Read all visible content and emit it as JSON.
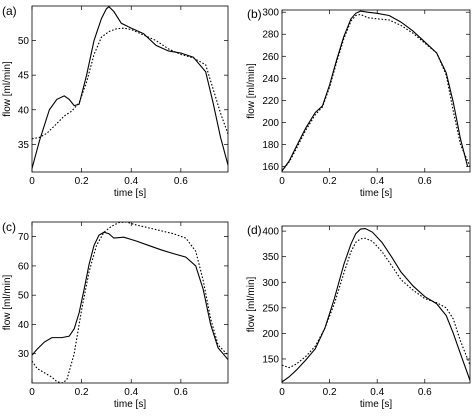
{
  "chart_data": [
    {
      "type": "line",
      "panel_label": "(a)",
      "xlabel": "time [s]",
      "ylabel": "flow [ml/min]",
      "xlim": [
        0,
        0.79
      ],
      "ylim": [
        31,
        55
      ],
      "xticks": [
        0,
        0.2,
        0.4,
        0.6
      ],
      "yticks": [
        35,
        40,
        45,
        50
      ],
      "grid": false,
      "series": [
        {
          "style": "solid",
          "x": [
            0,
            0.03,
            0.07,
            0.1,
            0.13,
            0.15,
            0.17,
            0.19,
            0.22,
            0.25,
            0.28,
            0.3,
            0.31,
            0.33,
            0.36,
            0.4,
            0.45,
            0.5,
            0.55,
            0.6,
            0.65,
            0.7,
            0.73,
            0.76,
            0.79
          ],
          "y": [
            31.5,
            35.5,
            40.0,
            41.5,
            42.0,
            41.5,
            40.6,
            40.8,
            45.0,
            50.0,
            53.2,
            54.6,
            54.9,
            54.2,
            52.5,
            51.8,
            51.0,
            49.3,
            48.5,
            48.2,
            47.6,
            45.5,
            41.0,
            36.0,
            32.0
          ]
        },
        {
          "style": "dotted",
          "x": [
            0,
            0.03,
            0.06,
            0.1,
            0.13,
            0.16,
            0.19,
            0.22,
            0.25,
            0.28,
            0.31,
            0.34,
            0.37,
            0.4,
            0.45,
            0.5,
            0.55,
            0.6,
            0.65,
            0.7,
            0.73,
            0.76,
            0.79
          ],
          "y": [
            35.8,
            36.0,
            36.6,
            38.0,
            39.1,
            39.8,
            41.0,
            44.0,
            48.0,
            50.5,
            51.3,
            51.7,
            51.8,
            51.6,
            50.8,
            50.0,
            48.8,
            48.0,
            47.5,
            46.5,
            43.0,
            39.5,
            36.5
          ]
        }
      ]
    },
    {
      "type": "line",
      "panel_label": "(b)",
      "xlabel": "time [s]",
      "ylabel": "flow [ml/min]",
      "xlim": [
        0,
        0.79
      ],
      "ylim": [
        155,
        302
      ],
      "xticks": [
        0,
        0.2,
        0.4,
        0.6
      ],
      "yticks": [
        160,
        180,
        200,
        220,
        240,
        260,
        280,
        300
      ],
      "grid": false,
      "series": [
        {
          "style": "solid",
          "x": [
            0,
            0.03,
            0.06,
            0.1,
            0.14,
            0.17,
            0.2,
            0.23,
            0.26,
            0.29,
            0.31,
            0.33,
            0.36,
            0.4,
            0.45,
            0.5,
            0.55,
            0.6,
            0.65,
            0.69,
            0.72,
            0.75,
            0.78
          ],
          "y": [
            156,
            165,
            178,
            195,
            209,
            215,
            234,
            257,
            278,
            294,
            299,
            301,
            300,
            299,
            297,
            291,
            283,
            273,
            263,
            245,
            218,
            185,
            160
          ]
        },
        {
          "style": "dotted",
          "x": [
            0,
            0.03,
            0.06,
            0.1,
            0.14,
            0.17,
            0.2,
            0.23,
            0.26,
            0.29,
            0.31,
            0.33,
            0.36,
            0.4,
            0.45,
            0.5,
            0.55,
            0.6,
            0.65,
            0.69,
            0.72,
            0.75,
            0.79
          ],
          "y": [
            156,
            164,
            176,
            193,
            207,
            214,
            232,
            255,
            276,
            292,
            297,
            298,
            295,
            294,
            293,
            288,
            281,
            272,
            263,
            243,
            210,
            180,
            160
          ]
        }
      ]
    },
    {
      "type": "line",
      "panel_label": "(c)",
      "xlabel": "time [s]",
      "ylabel": "flow [ml/min]",
      "xlim": [
        0,
        0.79
      ],
      "ylim": [
        20,
        75
      ],
      "xticks": [
        0,
        0.2,
        0.4,
        0.6
      ],
      "yticks": [
        30,
        40,
        50,
        60,
        70
      ],
      "grid": false,
      "series": [
        {
          "style": "solid",
          "x": [
            0,
            0.02,
            0.05,
            0.08,
            0.12,
            0.15,
            0.17,
            0.19,
            0.21,
            0.23,
            0.25,
            0.27,
            0.29,
            0.31,
            0.33,
            0.37,
            0.42,
            0.47,
            0.52,
            0.57,
            0.62,
            0.66,
            0.69,
            0.72,
            0.75,
            0.79
          ],
          "y": [
            29.5,
            31.5,
            34.0,
            35.5,
            35.5,
            36.0,
            38.5,
            44.0,
            52.0,
            60.5,
            67.0,
            70.5,
            71.5,
            71.0,
            69.5,
            69.8,
            68.5,
            67.0,
            65.5,
            64.2,
            63.0,
            60.0,
            52.0,
            40.0,
            32.0,
            28.0
          ]
        },
        {
          "style": "dotted",
          "x": [
            0,
            0.02,
            0.05,
            0.08,
            0.1,
            0.12,
            0.14,
            0.17,
            0.2,
            0.23,
            0.26,
            0.29,
            0.32,
            0.35,
            0.38,
            0.42,
            0.47,
            0.52,
            0.57,
            0.62,
            0.66,
            0.69,
            0.72,
            0.75,
            0.79
          ],
          "y": [
            27.5,
            25.0,
            23.5,
            22.0,
            20.5,
            20.0,
            21.0,
            30.0,
            45.0,
            58.0,
            67.0,
            71.5,
            73.5,
            74.8,
            75.0,
            74.0,
            73.0,
            72.0,
            71.0,
            69.5,
            65.0,
            55.0,
            42.0,
            33.0,
            29.5
          ]
        }
      ]
    },
    {
      "type": "line",
      "panel_label": "(d)",
      "xlabel": "time [s]",
      "ylabel": "flow [ml/min]",
      "xlim": [
        0,
        0.79
      ],
      "ylim": [
        103,
        410
      ],
      "xticks": [
        0,
        0.2,
        0.4,
        0.6
      ],
      "yticks": [
        150,
        200,
        250,
        300,
        350,
        400
      ],
      "grid": false,
      "series": [
        {
          "style": "solid",
          "x": [
            0,
            0.03,
            0.06,
            0.1,
            0.14,
            0.18,
            0.22,
            0.26,
            0.29,
            0.31,
            0.33,
            0.35,
            0.38,
            0.42,
            0.46,
            0.5,
            0.55,
            0.6,
            0.65,
            0.69,
            0.72,
            0.75,
            0.79
          ],
          "y": [
            105,
            115,
            128,
            148,
            170,
            210,
            268,
            335,
            375,
            395,
            404,
            405,
            398,
            378,
            350,
            320,
            293,
            272,
            258,
            235,
            200,
            160,
            108
          ]
        },
        {
          "style": "dotted",
          "x": [
            0,
            0.03,
            0.06,
            0.1,
            0.14,
            0.18,
            0.22,
            0.26,
            0.29,
            0.31,
            0.33,
            0.35,
            0.38,
            0.42,
            0.46,
            0.5,
            0.55,
            0.6,
            0.65,
            0.69,
            0.72,
            0.75,
            0.79
          ],
          "y": [
            138,
            133,
            140,
            155,
            175,
            210,
            258,
            318,
            360,
            378,
            385,
            386,
            380,
            360,
            333,
            305,
            285,
            268,
            260,
            250,
            228,
            185,
            138
          ]
        }
      ]
    }
  ]
}
